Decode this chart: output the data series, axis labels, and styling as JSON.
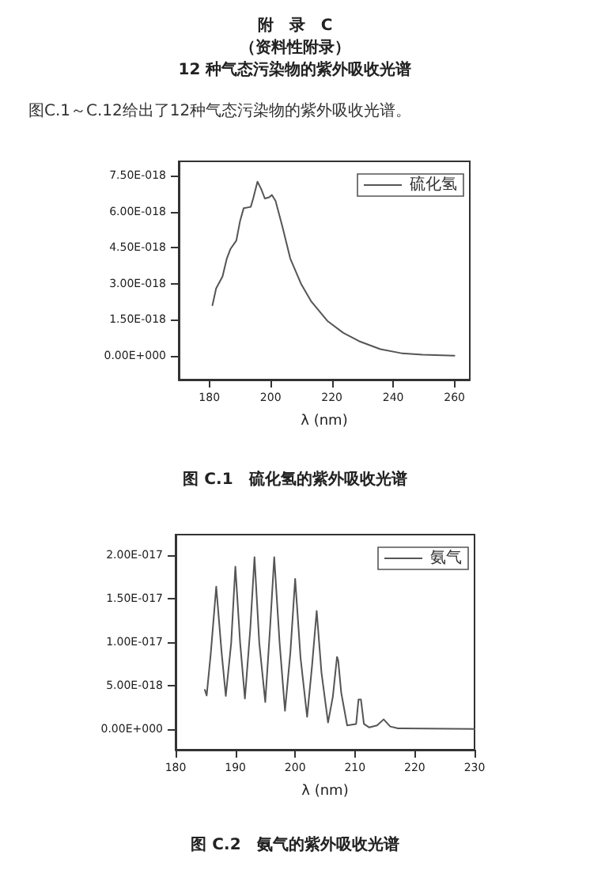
{
  "chart_data": [
    {
      "type": "line",
      "annotations": [
        "附　录　C",
        "（资料性附录）",
        "12 种气态污染物的紫外吸收光谱",
        "图C.1～C.12给出了12种气态污染物的紫外吸收光谱。",
        "图 C.1　硫化氢的紫外吸收光谱"
      ],
      "xlabel": "λ (nm)",
      "xlim": [
        170,
        265
      ],
      "xticks": [
        180,
        200,
        220,
        240,
        260
      ],
      "ylim": [
        -1e-18,
        8.1e-18
      ],
      "yticks": [
        {
          "value": 0,
          "label": "0.00E+000"
        },
        {
          "value": 1.5e-18,
          "label": "1.50E-018"
        },
        {
          "value": 3e-18,
          "label": "3.00E-018"
        },
        {
          "value": 4.5e-18,
          "label": "4.50E-018"
        },
        {
          "value": 6e-18,
          "label": "6.00E-018"
        },
        {
          "value": 7.5e-18,
          "label": "7.50E-018"
        }
      ],
      "grid": false,
      "legend": "top right",
      "marker": "none",
      "line_style": "solid",
      "x": [
        181,
        182.2,
        184.3,
        185.7,
        186.9,
        188.8,
        190,
        191.2,
        193.5,
        194.3,
        195.7,
        196.9,
        198.1,
        199.5,
        200.4,
        201.6,
        203.8,
        206.4,
        209.9,
        213.3,
        218.5,
        223.7,
        228.9,
        235.8,
        242.7,
        249.6,
        260
      ],
      "series": [
        {
          "name": "硫化氢",
          "color": "#555555",
          "values": [
            2.1e-18,
            2.8e-18,
            3.3e-18,
            4.05e-18,
            4.45e-18,
            4.8e-18,
            5.6e-18,
            6.15e-18,
            6.2e-18,
            6.55e-18,
            7.25e-18,
            6.95e-18,
            6.55e-18,
            6.6e-18,
            6.7e-18,
            6.45e-18,
            5.4e-18,
            4.05e-18,
            3e-18,
            2.25e-18,
            1.45e-18,
            9.5e-19,
            6e-19,
            2.7e-19,
            1e-19,
            4e-20,
            0
          ]
        }
      ]
    },
    {
      "type": "line",
      "annotations": [
        "图 C.2　氨气的紫外吸收光谱"
      ],
      "xlabel": "λ (nm)",
      "xlim": [
        180,
        230
      ],
      "xticks": [
        180,
        190,
        200,
        210,
        220,
        230
      ],
      "ylim": [
        -2.4e-18,
        2.24e-17
      ],
      "yticks": [
        {
          "value": 0,
          "label": "0.00E+000"
        },
        {
          "value": 5e-18,
          "label": "5.00E-018"
        },
        {
          "value": 1e-17,
          "label": "1.00E-017"
        },
        {
          "value": 1.5e-17,
          "label": "1.50E-017"
        },
        {
          "value": 2e-17,
          "label": "2.00E-017"
        }
      ],
      "grid": false,
      "legend": "top right",
      "marker": "none",
      "line_style": "solid",
      "x": [
        184.9,
        185.2,
        185.9,
        186.8,
        187.7,
        188.4,
        189.3,
        190,
        190.8,
        191.6,
        192.5,
        193.2,
        194,
        195,
        195.8,
        196.5,
        197.4,
        198.3,
        199.2,
        200,
        200.9,
        202,
        202.8,
        203.6,
        204.4,
        205.5,
        206.3,
        207,
        207.2,
        207.7,
        208.7,
        210.2,
        210.6,
        211,
        211.5,
        212.4,
        213.7,
        214.8,
        215.9,
        217.2,
        230
      ],
      "series": [
        {
          "name": "氨气",
          "color": "#555555",
          "values": [
            4.5e-18,
            3.85e-18,
            8.8e-18,
            1.64e-17,
            8.8e-18,
            3.8e-18,
            9.9e-18,
            1.87e-17,
            9.9e-18,
            3.5e-18,
            1.16e-17,
            1.98e-17,
            9.9e-18,
            3.1e-18,
            1.16e-17,
            1.98e-17,
            9.9e-18,
            2.1e-18,
            8.8e-18,
            1.73e-17,
            8.2e-18,
            1.4e-18,
            7.1e-18,
            1.36e-17,
            6.5e-18,
            7.4e-19,
            3.7e-18,
            8.3e-18,
            7.9e-18,
            4.2e-18,
            4e-19,
            5.7e-19,
            3.4e-18,
            3.4e-18,
            5.7e-19,
            1.7e-19,
            4e-19,
            1.1e-18,
            2.8e-19,
            6e-20,
            0
          ]
        }
      ]
    }
  ]
}
